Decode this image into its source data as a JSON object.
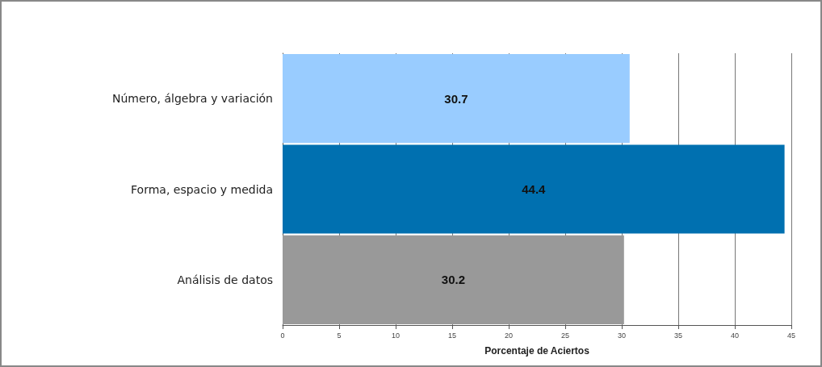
{
  "chart_data": {
    "type": "bar",
    "orientation": "horizontal",
    "xlabel": "Porcentaje de Aciertos",
    "categories": [
      "Número, álgebra y variación",
      "Forma, espacio y medida",
      "Análisis de datos"
    ],
    "values": [
      30.7,
      44.4,
      30.2
    ],
    "colors": [
      "#99ccff",
      "#0070b0",
      "#999999"
    ],
    "xlim": [
      0,
      45
    ],
    "xticks": [
      0,
      5,
      10,
      15,
      20,
      25,
      30,
      35,
      40,
      45
    ],
    "grid": "x",
    "data_labels": true
  }
}
